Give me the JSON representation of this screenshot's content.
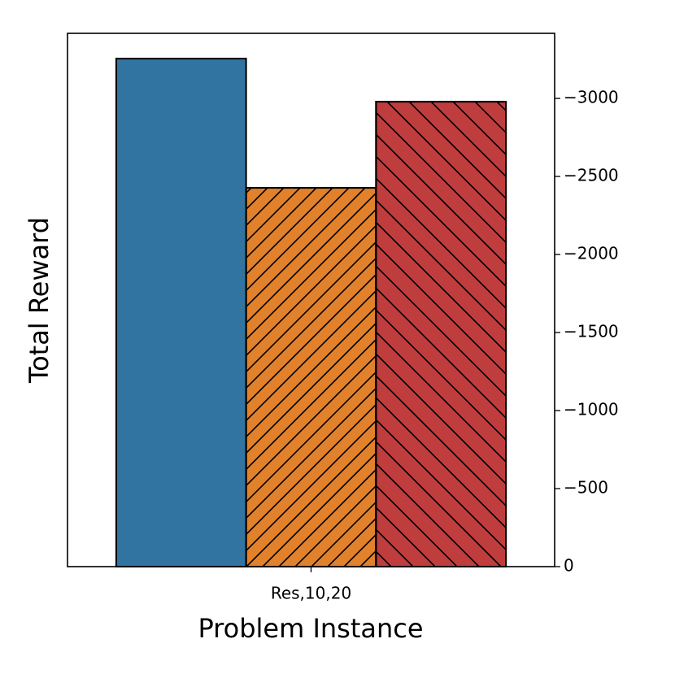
{
  "chart_data": {
    "type": "bar",
    "y_label": "Total Reward",
    "x_label": "Problem Instance",
    "categories": [
      "Res,10,20"
    ],
    "series": [
      {
        "color": "#3274a1",
        "values": [
          -3255
        ]
      },
      {
        "color": "#e1812c",
        "hatch": "/",
        "values": [
          -2427
        ]
      },
      {
        "color": "#c03d3e",
        "hatch": "\\",
        "values": [
          -2979
        ]
      }
    ],
    "y_axis_side": "right",
    "ylim": [
      0,
      -3417
    ],
    "yticks": [
      0,
      {
        "value": -500,
        "label": "−500"
      },
      {
        "value": -1000,
        "label": "−1000"
      },
      {
        "value": -1500,
        "label": "−1500"
      },
      {
        "value": -2000,
        "label": "−2000"
      },
      {
        "value": -2500,
        "label": "−2500"
      },
      {
        "value": -3000,
        "label": "−3000"
      }
    ]
  }
}
